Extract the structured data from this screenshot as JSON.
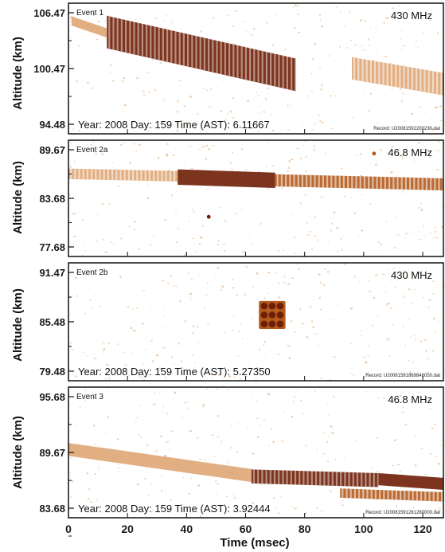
{
  "colors": {
    "background": "#ffffff",
    "speckle": "#e7b98c",
    "trace_light": "#d58d4e",
    "trace_mid": "#b35a1c",
    "trace_dark": "#6e1e06",
    "axis": "#111111"
  },
  "chart_data": {
    "type": "heatmap",
    "xlabel": "Time (msec)",
    "ylabel": "Altitude (km)",
    "x_ticks": [
      "0",
      "20",
      "40",
      "60",
      "80",
      "100",
      "120"
    ],
    "xlim": [
      0,
      127
    ],
    "panels": [
      {
        "event": "Event 1",
        "frequency": "430 MHz",
        "ylim": [
          94.48,
          106.47
        ],
        "y_ticks": [
          "106.47",
          "100.47",
          "94.48"
        ],
        "info": "Year: 2008  Day: 159  Time (AST): 6.11667",
        "record": "Record: U20081592200230.dat",
        "traces": [
          {
            "x_start": 1,
            "x_end": 13,
            "y_start": 105.6,
            "y_end": 104.3,
            "thickness_km": 1.0,
            "intensity": "light",
            "striped": false
          },
          {
            "x_start": 13,
            "x_end": 77,
            "y_start": 104.4,
            "y_end": 99.8,
            "thickness_km": 3.5,
            "intensity": "dark",
            "striped": true
          },
          {
            "x_start": 96,
            "x_end": 127,
            "y_start": 100.5,
            "y_end": 98.8,
            "thickness_km": 2.4,
            "intensity": "light",
            "striped": true
          }
        ]
      },
      {
        "event": "Event 2a",
        "frequency": "46.8 MHz",
        "ylim": [
          77.68,
          89.67
        ],
        "y_ticks": [
          "89.67",
          "83.68",
          "77.68"
        ],
        "info": "",
        "record": "",
        "traces": [
          {
            "x_start": 0,
            "x_end": 37,
            "y_start": 86.7,
            "y_end": 86.4,
            "thickness_km": 1.3,
            "intensity": "light",
            "striped": true
          },
          {
            "x_start": 37,
            "x_end": 70,
            "y_start": 86.3,
            "y_end": 85.9,
            "thickness_km": 1.9,
            "intensity": "dark",
            "striped": false
          },
          {
            "x_start": 70,
            "x_end": 127,
            "y_start": 85.9,
            "y_end": 85.4,
            "thickness_km": 1.5,
            "intensity": "mid",
            "striped": true
          }
        ],
        "spots": [
          {
            "x": 47.5,
            "y": 81.4,
            "intensity": "dark"
          },
          {
            "x": 103.5,
            "y": 89.2,
            "intensity": "mid"
          }
        ]
      },
      {
        "event": "Event 2b",
        "frequency": "430 MHz",
        "ylim": [
          79.48,
          91.47
        ],
        "y_ticks": [
          "91.47",
          "85.48",
          "79.48"
        ],
        "info": "Year: 2008  Day: 159  Time (AST): 5.27350",
        "record": "Record: U20081591869846050.dat",
        "blob": {
          "x_start": 64.5,
          "x_end": 73.5,
          "y_bottom": 84.6,
          "y_top": 88.0,
          "intensity": "dark"
        }
      },
      {
        "event": "Event 3",
        "frequency": "46.8 MHz",
        "ylim": [
          83.68,
          95.68
        ],
        "y_ticks": [
          "95.68",
          "89.67",
          "83.68"
        ],
        "info": "Year: 2008  Day: 159  Time (AST): 3.92444",
        "record": "Record: U20081591281280000.dat",
        "traces": [
          {
            "x_start": 0,
            "x_end": 62,
            "y_start": 90.0,
            "y_end": 87.2,
            "thickness_km": 1.4,
            "intensity": "light",
            "striped": false
          },
          {
            "x_start": 62,
            "x_end": 105,
            "y_start": 87.1,
            "y_end": 86.7,
            "thickness_km": 1.5,
            "intensity": "dark",
            "striped": true
          },
          {
            "x_start": 105,
            "x_end": 127,
            "y_start": 86.8,
            "y_end": 86.3,
            "thickness_km": 1.3,
            "intensity": "dark",
            "striped": false
          },
          {
            "x_start": 92,
            "x_end": 127,
            "y_start": 85.3,
            "y_end": 84.9,
            "thickness_km": 1.0,
            "intensity": "mid",
            "striped": true
          }
        ]
      }
    ]
  }
}
